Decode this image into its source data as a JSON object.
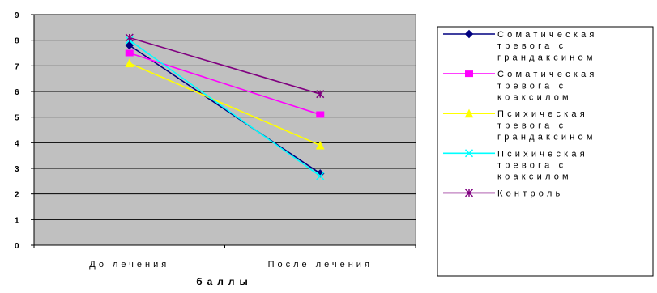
{
  "chart_data": {
    "type": "line",
    "categories": [
      "До лечения",
      "После лечения"
    ],
    "xlabel": "баллы",
    "ylabel": "",
    "ylim": [
      0,
      9
    ],
    "yticks": [
      0,
      1,
      2,
      3,
      4,
      5,
      6,
      7,
      8,
      9
    ],
    "grid": true,
    "plot_background": "#c0c0c0",
    "legend_placement": "right",
    "series": [
      {
        "name_lines": [
          "Соматическая",
          "тревога с",
          "грандаксином"
        ],
        "values": [
          7.8,
          2.8
        ],
        "color": "#000080",
        "marker": "diamond"
      },
      {
        "name_lines": [
          "Соматическая",
          "тревога с",
          "коаксилом"
        ],
        "values": [
          7.5,
          5.1
        ],
        "color": "#ff00ff",
        "marker": "square"
      },
      {
        "name_lines": [
          "Психическая",
          "тревога с",
          "грандаксином"
        ],
        "values": [
          7.1,
          3.9
        ],
        "color": "#ffff00",
        "marker": "triangle"
      },
      {
        "name_lines": [
          "Психическая",
          "тревога с",
          "коаксилом"
        ],
        "values": [
          8.0,
          2.7
        ],
        "color": "#00ffff",
        "marker": "x"
      },
      {
        "name_lines": [
          "Контроль"
        ],
        "values": [
          8.1,
          5.9
        ],
        "color": "#800080",
        "marker": "star"
      }
    ]
  }
}
